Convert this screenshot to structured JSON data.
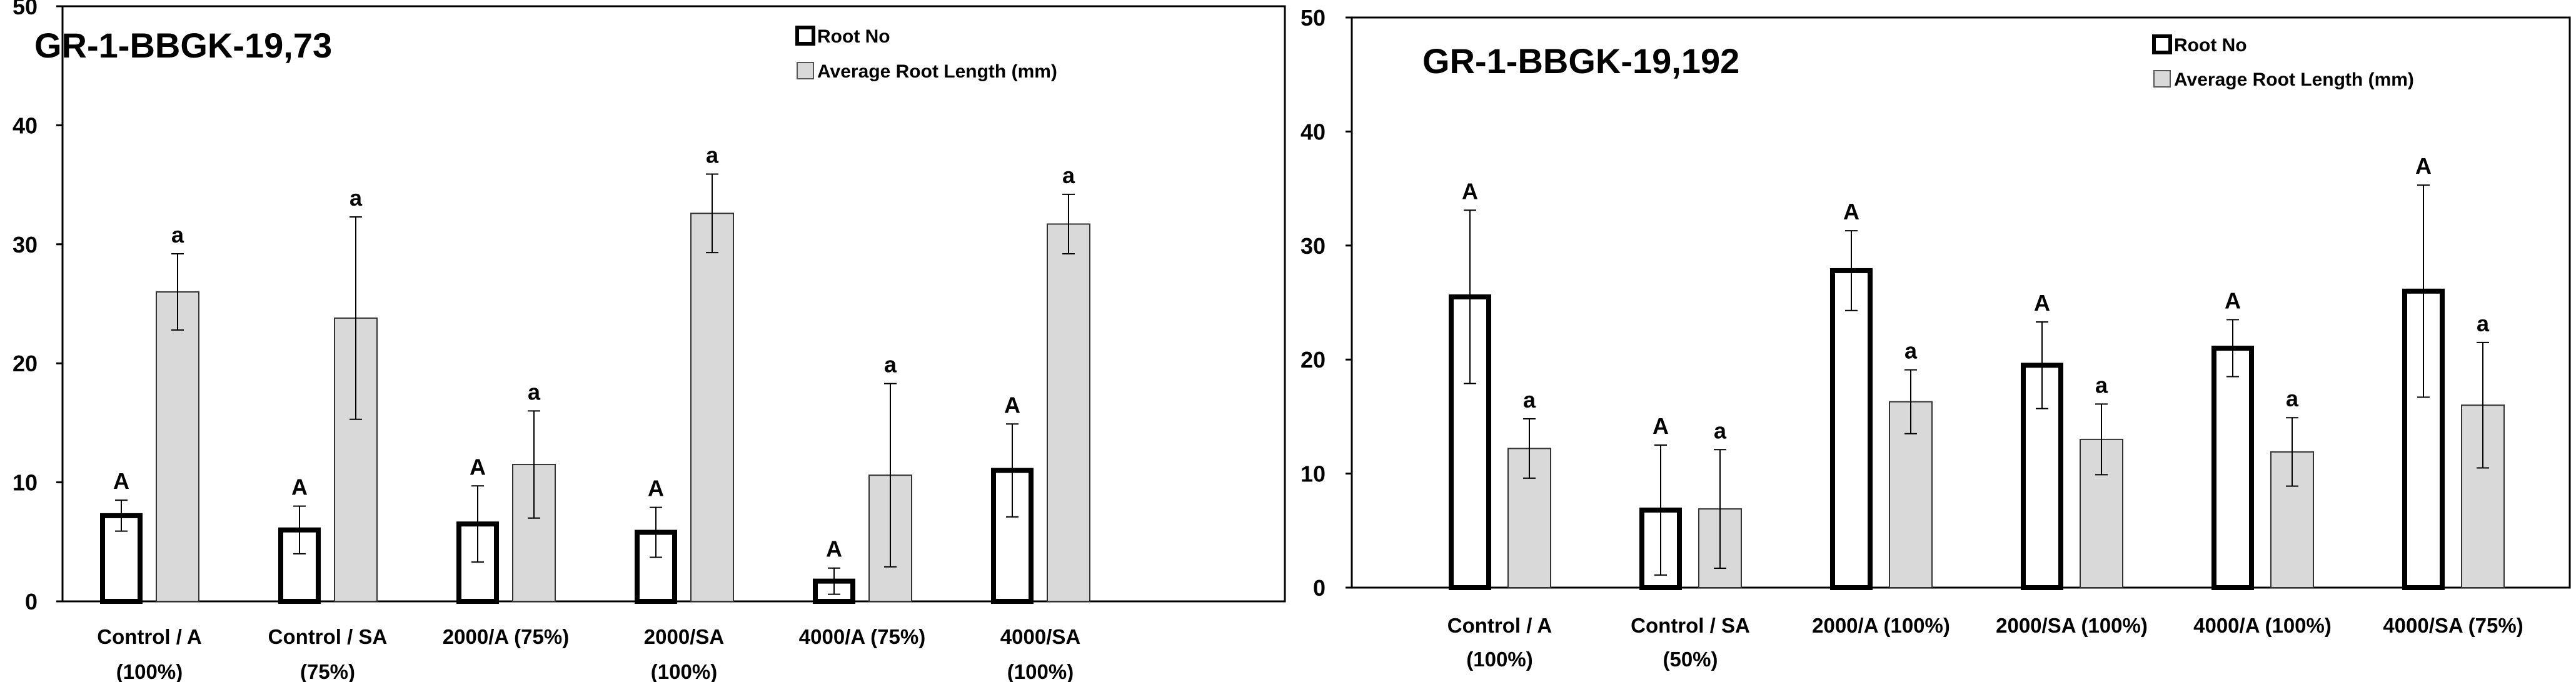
{
  "chart_data": [
    {
      "type": "bar",
      "title": "GR-1-BBGK-19,73",
      "ylim": [
        0,
        50
      ],
      "yticks": [
        0,
        10,
        20,
        30,
        40,
        50
      ],
      "categories": [
        [
          "Control / A",
          "(100%)"
        ],
        [
          "Control / SA",
          "(75%)"
        ],
        [
          "2000/A (75%)"
        ],
        [
          "2000/SA",
          "(100%)"
        ],
        [
          "4000/A (75%)"
        ],
        [
          "4000/SA",
          "(100%)"
        ]
      ],
      "series": [
        {
          "name": "Root No",
          "values": [
            7.2,
            6.0,
            6.5,
            5.8,
            1.7,
            11.0
          ],
          "errors": [
            1.3,
            2.0,
            3.2,
            2.1,
            1.1,
            3.9
          ],
          "letters": [
            "A",
            "A",
            "A",
            "A",
            "A",
            "A"
          ]
        },
        {
          "name": "Average Root Length (mm)",
          "values": [
            26.0,
            23.8,
            11.5,
            32.6,
            10.6,
            31.7
          ],
          "errors": [
            3.2,
            8.5,
            4.5,
            3.3,
            7.7,
            2.5
          ],
          "letters": [
            "a",
            "a",
            "a",
            "a",
            "a",
            "a"
          ]
        }
      ],
      "legend_position": "top-right"
    },
    {
      "type": "bar",
      "title": "GR-1-BBGK-19,192",
      "ylim": [
        0,
        50
      ],
      "yticks": [
        0,
        10,
        20,
        30,
        40,
        50
      ],
      "categories": [
        [
          "Control / A",
          "(100%)"
        ],
        [
          "Control / SA",
          "(50%)"
        ],
        [
          "2000/A (100%)"
        ],
        [
          "2000/SA (100%)"
        ],
        [
          "4000/A (100%)"
        ],
        [
          "4000/SA (75%)"
        ]
      ],
      "series": [
        {
          "name": "Root No",
          "values": [
            25.5,
            6.8,
            27.8,
            19.5,
            21.0,
            26.0
          ],
          "errors": [
            7.6,
            5.7,
            3.5,
            3.8,
            2.5,
            9.3
          ],
          "letters": [
            "A",
            "A",
            "A",
            "A",
            "A",
            "A"
          ]
        },
        {
          "name": "Average Root Length (mm)",
          "values": [
            12.2,
            6.9,
            16.3,
            13.0,
            11.9,
            16.0
          ],
          "errors": [
            2.6,
            5.2,
            2.8,
            3.1,
            3.0,
            5.5
          ],
          "letters": [
            "a",
            "a",
            "a",
            "a",
            "a",
            "a"
          ]
        }
      ],
      "legend_position": "top-right"
    }
  ],
  "colors": {
    "root_no_fill": "#ffffff",
    "root_no_stroke": "#000000",
    "root_length_fill": "#d9d9d9",
    "axis": "#000000"
  }
}
